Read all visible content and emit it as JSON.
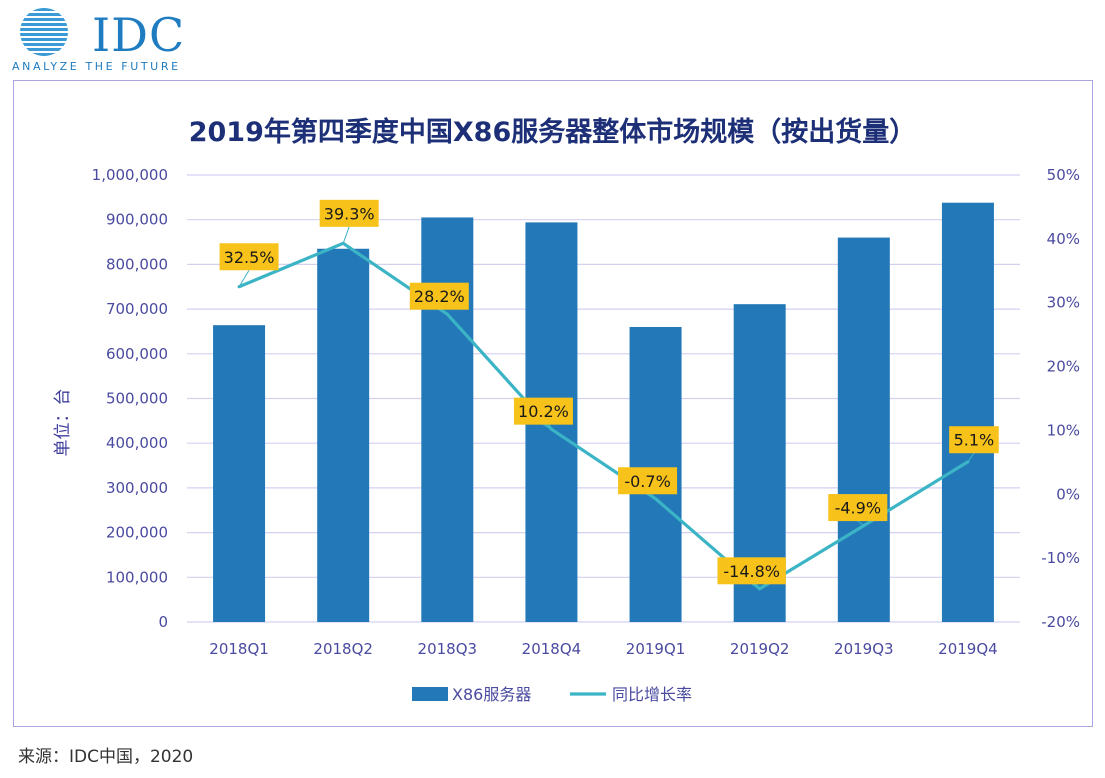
{
  "logo": {
    "brand": "IDC",
    "tagline": "ANALYZE THE FUTURE"
  },
  "source_note": "来源：IDC中国，2020",
  "colors": {
    "bar": "#2378b8",
    "line": "#3bb4c6",
    "label_bg": "#f7c21a",
    "grid": "#d4d1f0",
    "axis_text": "#4a4aa0",
    "title": "#1c2f77"
  },
  "chart_data": {
    "type": "bar",
    "title": "2019年第四季度中国X86服务器整体市场规模（按出货量）",
    "xlabel": "",
    "ylabel": "单位：台",
    "categories": [
      "2018Q1",
      "2018Q2",
      "2018Q3",
      "2018Q4",
      "2019Q1",
      "2019Q2",
      "2019Q3",
      "2019Q4"
    ],
    "series": [
      {
        "name": "X86服务器",
        "type": "bar",
        "axis": "left",
        "values": [
          664000,
          835000,
          905000,
          894000,
          660000,
          711000,
          860000,
          938000
        ]
      },
      {
        "name": "同比增长率",
        "type": "line",
        "axis": "right",
        "values": [
          32.5,
          39.3,
          28.2,
          10.2,
          -0.7,
          -14.8,
          -4.9,
          5.1
        ],
        "labels": [
          "32.5%",
          "39.3%",
          "28.2%",
          "10.2%",
          "-0.7%",
          "-14.8%",
          "-4.9%",
          "5.1%"
        ]
      }
    ],
    "ylim": [
      0,
      1000000
    ],
    "y_ticks": [
      "0",
      "100,000",
      "200,000",
      "300,000",
      "400,000",
      "500,000",
      "600,000",
      "700,000",
      "800,000",
      "900,000",
      "1,000,000"
    ],
    "y2lim": [
      -20,
      50
    ],
    "y2_ticks": [
      "-20%",
      "-10%",
      "0%",
      "10%",
      "20%",
      "30%",
      "40%",
      "50%"
    ],
    "grid": true,
    "legend": "bottom-center"
  }
}
